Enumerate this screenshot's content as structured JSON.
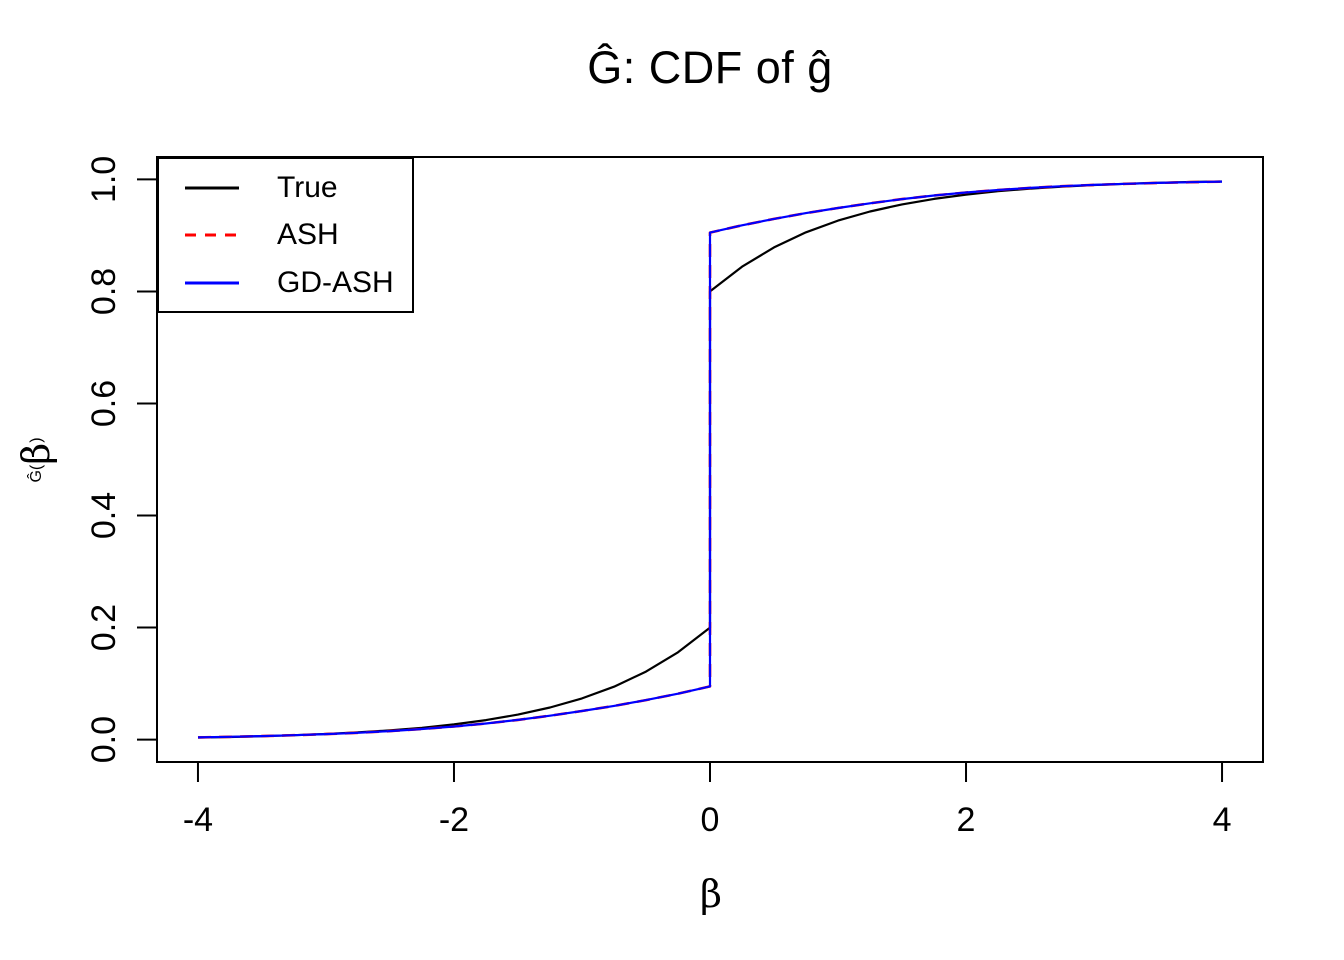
{
  "chart_data": {
    "type": "line",
    "title": "Ĝ: CDF of ĝ",
    "xlabel": "β",
    "ylabel": "Ĝ(β)",
    "ylabel_parts": {
      "prefix": "Ĝ(",
      "beta": "β",
      "suffix": ")"
    },
    "xlim": [
      -4,
      4
    ],
    "ylim": [
      0,
      1
    ],
    "grid": false,
    "legend_position": "topleft",
    "x_ticks": [
      {
        "v": -4,
        "label": "-4"
      },
      {
        "v": -2,
        "label": "-2"
      },
      {
        "v": 0,
        "label": "0"
      },
      {
        "v": 2,
        "label": "2"
      },
      {
        "v": 4,
        "label": "4"
      }
    ],
    "y_ticks": [
      {
        "v": 0.0,
        "label": "0.0"
      },
      {
        "v": 0.2,
        "label": "0.2"
      },
      {
        "v": 0.4,
        "label": "0.4"
      },
      {
        "v": 0.6,
        "label": "0.6"
      },
      {
        "v": 0.8,
        "label": "0.8"
      },
      {
        "v": 1.0,
        "label": "1.0"
      }
    ],
    "x": [
      -4,
      -3.75,
      -3.5,
      -3.25,
      -3,
      -2.75,
      -2.5,
      -2.25,
      -2,
      -1.75,
      -1.5,
      -1.25,
      -1,
      -0.75,
      -0.5,
      -0.25,
      0,
      0,
      0.25,
      0.5,
      0.75,
      1,
      1.25,
      1.5,
      1.75,
      2,
      2.25,
      2.5,
      2.75,
      3,
      3.25,
      3.5,
      3.75,
      4
    ],
    "series": [
      {
        "name": "True",
        "color": "#000000",
        "dash": "none",
        "width": 2.2,
        "jump_at": 0,
        "jump_from": 0.2,
        "jump_to": 0.8,
        "y": [
          0.0037,
          0.0047,
          0.006,
          0.0078,
          0.01,
          0.0128,
          0.0164,
          0.0211,
          0.0271,
          0.0348,
          0.0446,
          0.0573,
          0.0736,
          0.0945,
          0.1213,
          0.1558,
          0.2,
          0.8,
          0.8442,
          0.8787,
          0.9055,
          0.9264,
          0.9427,
          0.9554,
          0.9652,
          0.9729,
          0.9789,
          0.9836,
          0.9872,
          0.99,
          0.9922,
          0.994,
          0.9953,
          0.9963
        ]
      },
      {
        "name": "ASH",
        "color": "#FF0000",
        "dash": "13 8",
        "width": 2.6,
        "jump_at": 0,
        "jump_from": 0.095,
        "jump_to": 0.905,
        "y": [
          0.004,
          0.005,
          0.0063,
          0.0078,
          0.0098,
          0.0122,
          0.0152,
          0.0189,
          0.0234,
          0.0288,
          0.0352,
          0.0426,
          0.051,
          0.0601,
          0.0705,
          0.082,
          0.095,
          0.905,
          0.918,
          0.9295,
          0.9399,
          0.949,
          0.9574,
          0.9648,
          0.9712,
          0.9766,
          0.9811,
          0.9848,
          0.9878,
          0.9902,
          0.9922,
          0.9937,
          0.995,
          0.996
        ]
      },
      {
        "name": "GD-ASH",
        "color": "#0000FF",
        "dash": "none",
        "width": 2.2,
        "jump_at": 0,
        "jump_from": 0.095,
        "jump_to": 0.905,
        "y": [
          0.004,
          0.005,
          0.0063,
          0.0078,
          0.0098,
          0.0122,
          0.0152,
          0.0189,
          0.0234,
          0.0288,
          0.0352,
          0.0426,
          0.051,
          0.0601,
          0.0705,
          0.082,
          0.095,
          0.905,
          0.918,
          0.9295,
          0.9399,
          0.949,
          0.9574,
          0.9648,
          0.9712,
          0.9766,
          0.9811,
          0.9848,
          0.9878,
          0.9902,
          0.9922,
          0.9937,
          0.995,
          0.996
        ]
      }
    ]
  },
  "legend": {
    "items": [
      {
        "label": "True",
        "color": "#000000",
        "dash": "none"
      },
      {
        "label": "ASH",
        "color": "#FF0000",
        "dash": "11 9"
      },
      {
        "label": "GD-ASH",
        "color": "#0000FF",
        "dash": "none"
      }
    ]
  },
  "colors": {
    "background": "#ffffff",
    "foreground": "#000000",
    "ash": "#FF0000",
    "gd_ash": "#0000FF"
  }
}
